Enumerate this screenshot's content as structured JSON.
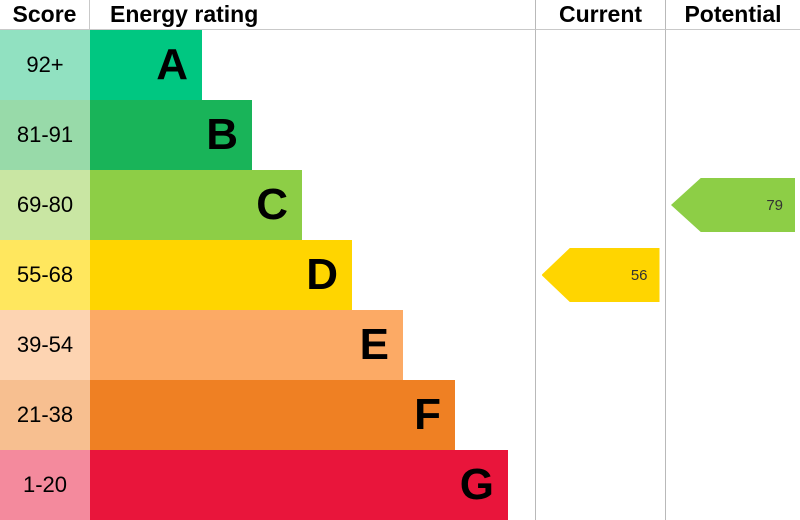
{
  "header": {
    "score": "Score",
    "energy_rating": "Energy rating",
    "current": "Current",
    "potential": "Potential"
  },
  "bands": [
    {
      "score": "92+",
      "letter": "A",
      "color": "#00c781",
      "tint": "#91e1c1"
    },
    {
      "score": "81-91",
      "letter": "B",
      "color": "#19b459",
      "tint": "#98daa9"
    },
    {
      "score": "69-80",
      "letter": "C",
      "color": "#8dce46",
      "tint": "#c9e6a3"
    },
    {
      "score": "55-68",
      "letter": "D",
      "color": "#ffd500",
      "tint": "#ffe75e"
    },
    {
      "score": "39-54",
      "letter": "E",
      "color": "#fcaa65",
      "tint": "#fdd4b2"
    },
    {
      "score": "21-38",
      "letter": "F",
      "color": "#ef8023",
      "tint": "#f7bf90"
    },
    {
      "score": "1-20",
      "letter": "G",
      "color": "#e9153b",
      "tint": "#f48a9d"
    }
  ],
  "current": {
    "label": "Current",
    "value": "56",
    "band": "D",
    "color": "#ffd500"
  },
  "potential": {
    "label": "Potential",
    "value": "79",
    "band": "C",
    "color": "#8dce46"
  },
  "chart_data": {
    "type": "bar",
    "title": "Energy rating",
    "categories": [
      "A",
      "B",
      "C",
      "D",
      "E",
      "F",
      "G"
    ],
    "score_ranges": [
      "92+",
      "81-91",
      "69-80",
      "55-68",
      "39-54",
      "21-38",
      "1-20"
    ],
    "band_colors": [
      "#00c781",
      "#19b459",
      "#8dce46",
      "#ffd500",
      "#fcaa65",
      "#ef8023",
      "#e9153b"
    ],
    "bar_relative_widths": [
      112,
      162,
      212,
      262,
      313,
      365,
      418
    ],
    "columns": [
      "Score",
      "Energy rating",
      "Current",
      "Potential"
    ],
    "markers": [
      {
        "name": "Current",
        "value": 56,
        "band": "D",
        "color": "#ffd500"
      },
      {
        "name": "Potential",
        "value": 79,
        "band": "C",
        "color": "#8dce46"
      }
    ],
    "legend_position": "none",
    "grid": false
  }
}
